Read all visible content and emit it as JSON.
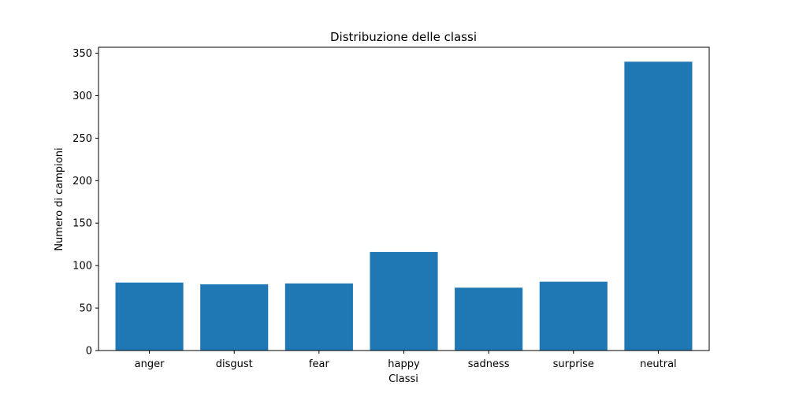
{
  "chart_data": {
    "type": "bar",
    "title": "Distribuzione delle classi",
    "xlabel": "Classi",
    "ylabel": "Numero di campioni",
    "categories": [
      "anger",
      "disgust",
      "fear",
      "happy",
      "sadness",
      "surprise",
      "neutral"
    ],
    "values": [
      80,
      78,
      79,
      116,
      74,
      81,
      340
    ],
    "ylim": [
      0,
      357
    ],
    "yticks": [
      0,
      50,
      100,
      150,
      200,
      250,
      300,
      350
    ],
    "bar_color": "#1f77b4",
    "grid": false,
    "legend": "none"
  }
}
